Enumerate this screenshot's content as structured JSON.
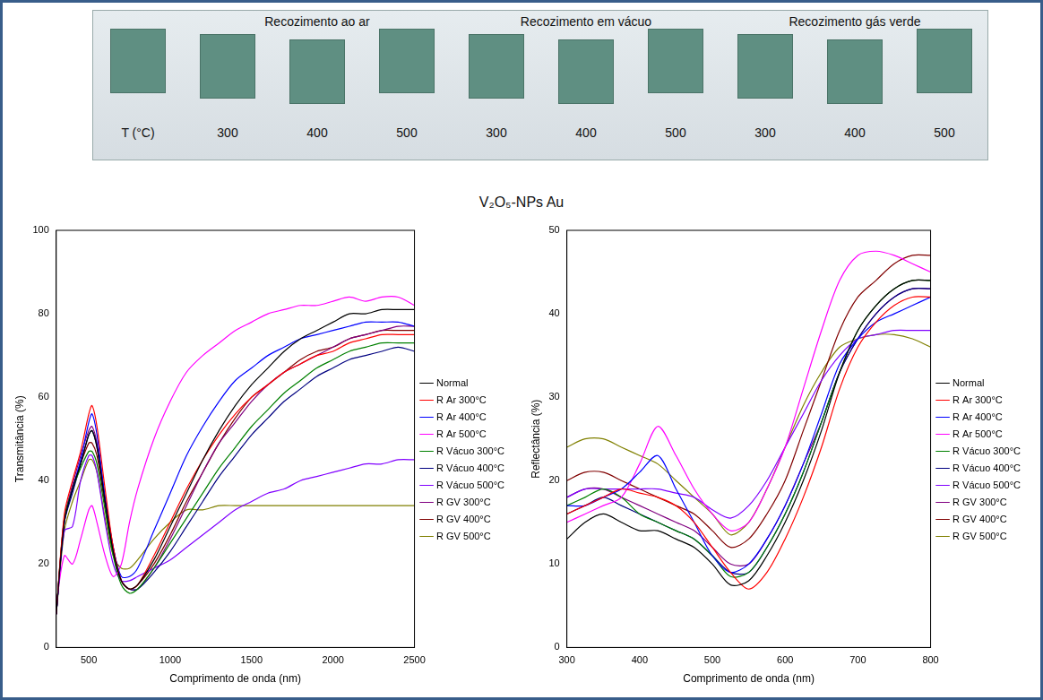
{
  "title": "V₂O₅-NPs Au",
  "photo": {
    "groups": [
      "Recozimento ao ar",
      "Recozimento em vácuo",
      "Recozimento gás verde"
    ],
    "temperature_label": "T (°C)",
    "temperatures": [
      300,
      400,
      500,
      300,
      400,
      500,
      300,
      400,
      500
    ]
  },
  "chart_data": [
    {
      "type": "line",
      "x_label": "Comprimento de onda (nm)",
      "y_label": "Transmitância (%)",
      "xlim": [
        300,
        2500
      ],
      "xticks": [
        500,
        1000,
        1500,
        2000,
        2500
      ],
      "ylim": [
        0,
        100
      ],
      "yticks": [
        0,
        20,
        40,
        60,
        80,
        100
      ],
      "grid": false,
      "legend": "right",
      "x": [
        300,
        350,
        400,
        450,
        500,
        520,
        550,
        600,
        650,
        700,
        750,
        800,
        900,
        1000,
        1100,
        1200,
        1300,
        1400,
        1500,
        1600,
        1700,
        1800,
        1900,
        2000,
        2100,
        2200,
        2300,
        2400,
        2500
      ],
      "series": [
        {
          "name": "Normal",
          "color": "#000000",
          "values": [
            8,
            30,
            38,
            44,
            51,
            52,
            48,
            35,
            23,
            16,
            14,
            15,
            21,
            29,
            37,
            45,
            52,
            58,
            63,
            67,
            71,
            74,
            76,
            78,
            80,
            80,
            81,
            81,
            81
          ]
        },
        {
          "name": "R Ar 300°C",
          "color": "#ff0000",
          "values": [
            8,
            32,
            40,
            47,
            56,
            58,
            53,
            38,
            24,
            16,
            14,
            15,
            22,
            30,
            38,
            45,
            51,
            56,
            60,
            63,
            66,
            68,
            70,
            71,
            73,
            74,
            75,
            75,
            75
          ]
        },
        {
          "name": "R Ar 400°C",
          "color": "#0000ff",
          "values": [
            8,
            30,
            38,
            45,
            54,
            56,
            51,
            36,
            24,
            17,
            17,
            19,
            28,
            37,
            46,
            53,
            59,
            64,
            67,
            70,
            72,
            74,
            75,
            76,
            77,
            78,
            78,
            78,
            77
          ]
        },
        {
          "name": "R Ar 500°C",
          "color": "#ff00ff",
          "values": [
            10,
            22,
            20,
            26,
            33,
            34,
            30,
            22,
            17,
            20,
            30,
            38,
            50,
            59,
            66,
            70,
            73,
            76,
            78,
            80,
            81,
            82,
            82,
            83,
            84,
            83,
            84,
            84,
            82
          ]
        },
        {
          "name": "R Vácuo 300°C",
          "color": "#008000",
          "values": [
            8,
            31,
            38,
            43,
            47,
            47,
            44,
            33,
            22,
            15,
            13,
            14,
            19,
            25,
            31,
            37,
            43,
            48,
            53,
            57,
            61,
            64,
            67,
            69,
            71,
            72,
            73,
            73,
            73
          ]
        },
        {
          "name": "R Vácuo 400°C",
          "color": "#000080",
          "values": [
            8,
            30,
            37,
            44,
            51,
            52,
            48,
            35,
            23,
            16,
            14,
            14,
            18,
            23,
            29,
            35,
            41,
            46,
            51,
            55,
            59,
            62,
            65,
            67,
            69,
            70,
            71,
            72,
            71
          ]
        },
        {
          "name": "R Vácuo 500°C",
          "color": "#8000ff",
          "values": [
            8,
            28,
            29,
            40,
            46,
            46,
            42,
            30,
            20,
            16,
            16,
            17,
            19,
            21,
            24,
            27,
            30,
            33,
            35,
            37,
            38,
            40,
            41,
            42,
            43,
            44,
            44,
            45,
            45
          ]
        },
        {
          "name": "R GV 300°C",
          "color": "#800080",
          "values": [
            8,
            31,
            39,
            46,
            52,
            53,
            49,
            36,
            24,
            16,
            14,
            14,
            19,
            26,
            34,
            42,
            49,
            54,
            59,
            63,
            66,
            68,
            70,
            72,
            74,
            75,
            76,
            77,
            77
          ]
        },
        {
          "name": "R GV 400°C",
          "color": "#800000",
          "values": [
            8,
            31,
            38,
            44,
            49,
            49,
            46,
            34,
            23,
            16,
            14,
            15,
            20,
            27,
            35,
            42,
            49,
            55,
            60,
            63,
            66,
            69,
            71,
            72,
            74,
            75,
            76,
            76,
            76
          ]
        },
        {
          "name": "R GV 500°C",
          "color": "#808000",
          "values": [
            8,
            28,
            35,
            40,
            45,
            45,
            42,
            31,
            22,
            19,
            19,
            21,
            26,
            30,
            33,
            33,
            34,
            34,
            34,
            34,
            34,
            34,
            34,
            34,
            34,
            34,
            34,
            34,
            34
          ]
        }
      ]
    },
    {
      "type": "line",
      "x_label": "Comprimento de onda (nm)",
      "y_label": "Reflectância (%)",
      "xlim": [
        300,
        800
      ],
      "xticks": [
        300,
        400,
        500,
        600,
        700,
        800
      ],
      "ylim": [
        0,
        50
      ],
      "yticks": [
        0,
        10,
        20,
        30,
        40,
        50
      ],
      "grid": false,
      "legend": "right",
      "x": [
        300,
        325,
        350,
        375,
        400,
        425,
        450,
        475,
        500,
        525,
        550,
        575,
        600,
        625,
        650,
        675,
        700,
        725,
        750,
        775,
        800
      ],
      "series": [
        {
          "name": "Normal",
          "color": "#000000",
          "values": [
            13,
            15,
            16,
            15,
            14,
            14,
            13,
            12,
            10,
            7.5,
            8,
            11,
            15,
            20,
            26,
            33,
            38,
            41,
            43,
            44,
            44
          ]
        },
        {
          "name": "R Ar 300°C",
          "color": "#ff0000",
          "values": [
            16,
            17,
            18,
            19,
            18.5,
            18,
            17,
            15,
            12,
            9,
            7,
            9,
            13,
            18,
            24,
            31,
            36,
            39,
            41,
            42,
            42
          ]
        },
        {
          "name": "R Ar 400°C",
          "color": "#0000ff",
          "values": [
            17,
            17,
            18,
            19,
            21,
            23,
            19,
            15,
            11,
            9,
            10,
            13,
            17,
            22,
            28,
            34,
            37,
            39,
            40,
            41,
            42
          ]
        },
        {
          "name": "R Ar 500°C",
          "color": "#ff00ff",
          "values": [
            15,
            16,
            17,
            18,
            22,
            26.5,
            23,
            19,
            16,
            14,
            15,
            19,
            24,
            31,
            38,
            44,
            47,
            47.5,
            47,
            46,
            45
          ]
        },
        {
          "name": "R Vácuo 300°C",
          "color": "#008000",
          "values": [
            17,
            18,
            19,
            18,
            16,
            15,
            14,
            13,
            11,
            8.5,
            9,
            12,
            16,
            21,
            27,
            33,
            38,
            41,
            43,
            44,
            44
          ]
        },
        {
          "name": "R Vácuo 400°C",
          "color": "#000080",
          "values": [
            16,
            17,
            18,
            17,
            16,
            15,
            14,
            13,
            11,
            9,
            9,
            12,
            16,
            21,
            27,
            33,
            37,
            40,
            42,
            43,
            43
          ]
        },
        {
          "name": "R Vácuo 500°C",
          "color": "#8000ff",
          "values": [
            18,
            19,
            19,
            19,
            19,
            19,
            18.5,
            18,
            16.5,
            15.5,
            17,
            20,
            24,
            28,
            32,
            35,
            37,
            37.5,
            38,
            38,
            38
          ]
        },
        {
          "name": "R GV 300°C",
          "color": "#800080",
          "values": [
            18,
            19,
            19,
            18,
            17,
            16,
            15,
            14,
            12,
            10,
            10,
            13,
            17,
            22,
            27,
            33,
            37,
            40,
            42,
            43,
            43
          ]
        },
        {
          "name": "R GV 400°C",
          "color": "#800000",
          "values": [
            20,
            21,
            21,
            20,
            19,
            18,
            17,
            16,
            14,
            12,
            13,
            16,
            20,
            26,
            32,
            38,
            42,
            44,
            46,
            47,
            47
          ]
        },
        {
          "name": "R GV 500°C",
          "color": "#808000",
          "values": [
            24,
            25,
            25,
            24,
            23,
            22,
            20,
            18,
            16,
            13.5,
            15,
            19,
            24,
            29,
            33,
            36,
            37,
            37.5,
            37.5,
            37,
            36
          ]
        }
      ]
    }
  ]
}
